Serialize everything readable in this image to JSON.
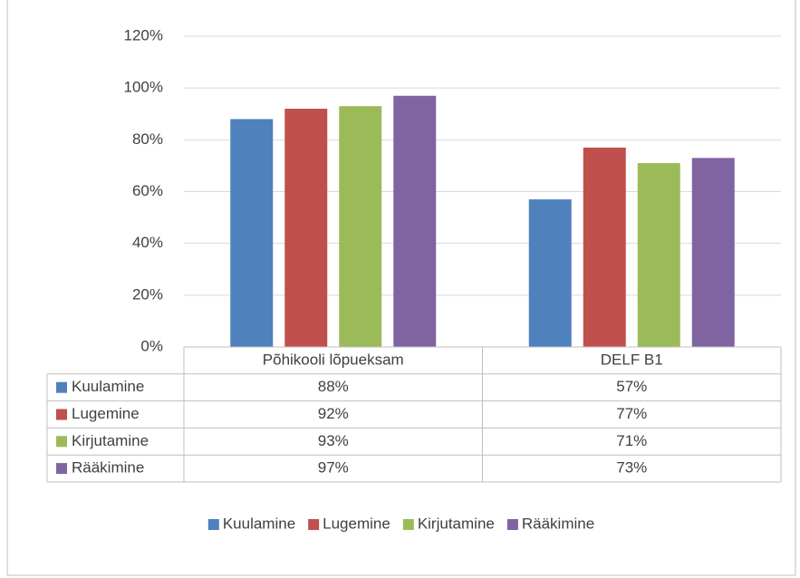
{
  "chart_data": {
    "type": "bar",
    "categories": [
      "Põhikooli lõpueksam",
      "DELF B1"
    ],
    "series": [
      {
        "name": "Kuulamine",
        "color": "#4f81bd",
        "values": [
          88,
          57
        ],
        "value_labels": [
          "88%",
          "57%"
        ]
      },
      {
        "name": "Lugemine",
        "color": "#c0504d",
        "values": [
          92,
          77
        ],
        "value_labels": [
          "92%",
          "77%"
        ]
      },
      {
        "name": "Kirjutamine",
        "color": "#9bbb59",
        "values": [
          93,
          71
        ],
        "value_labels": [
          "93%",
          "71%"
        ]
      },
      {
        "name": "Rääkimine",
        "color": "#8064a2",
        "values": [
          97,
          73
        ],
        "value_labels": [
          "97%",
          "73%"
        ]
      }
    ],
    "ylim": [
      0,
      120
    ],
    "yticks": [
      {
        "value": 0,
        "label": "0%"
      },
      {
        "value": 20,
        "label": "20%"
      },
      {
        "value": 40,
        "label": "40%"
      },
      {
        "value": 60,
        "label": "60%"
      },
      {
        "value": 80,
        "label": "80%"
      },
      {
        "value": 100,
        "label": "100%"
      },
      {
        "value": 120,
        "label": "120%"
      }
    ],
    "grid": true,
    "legend": "bottom"
  }
}
